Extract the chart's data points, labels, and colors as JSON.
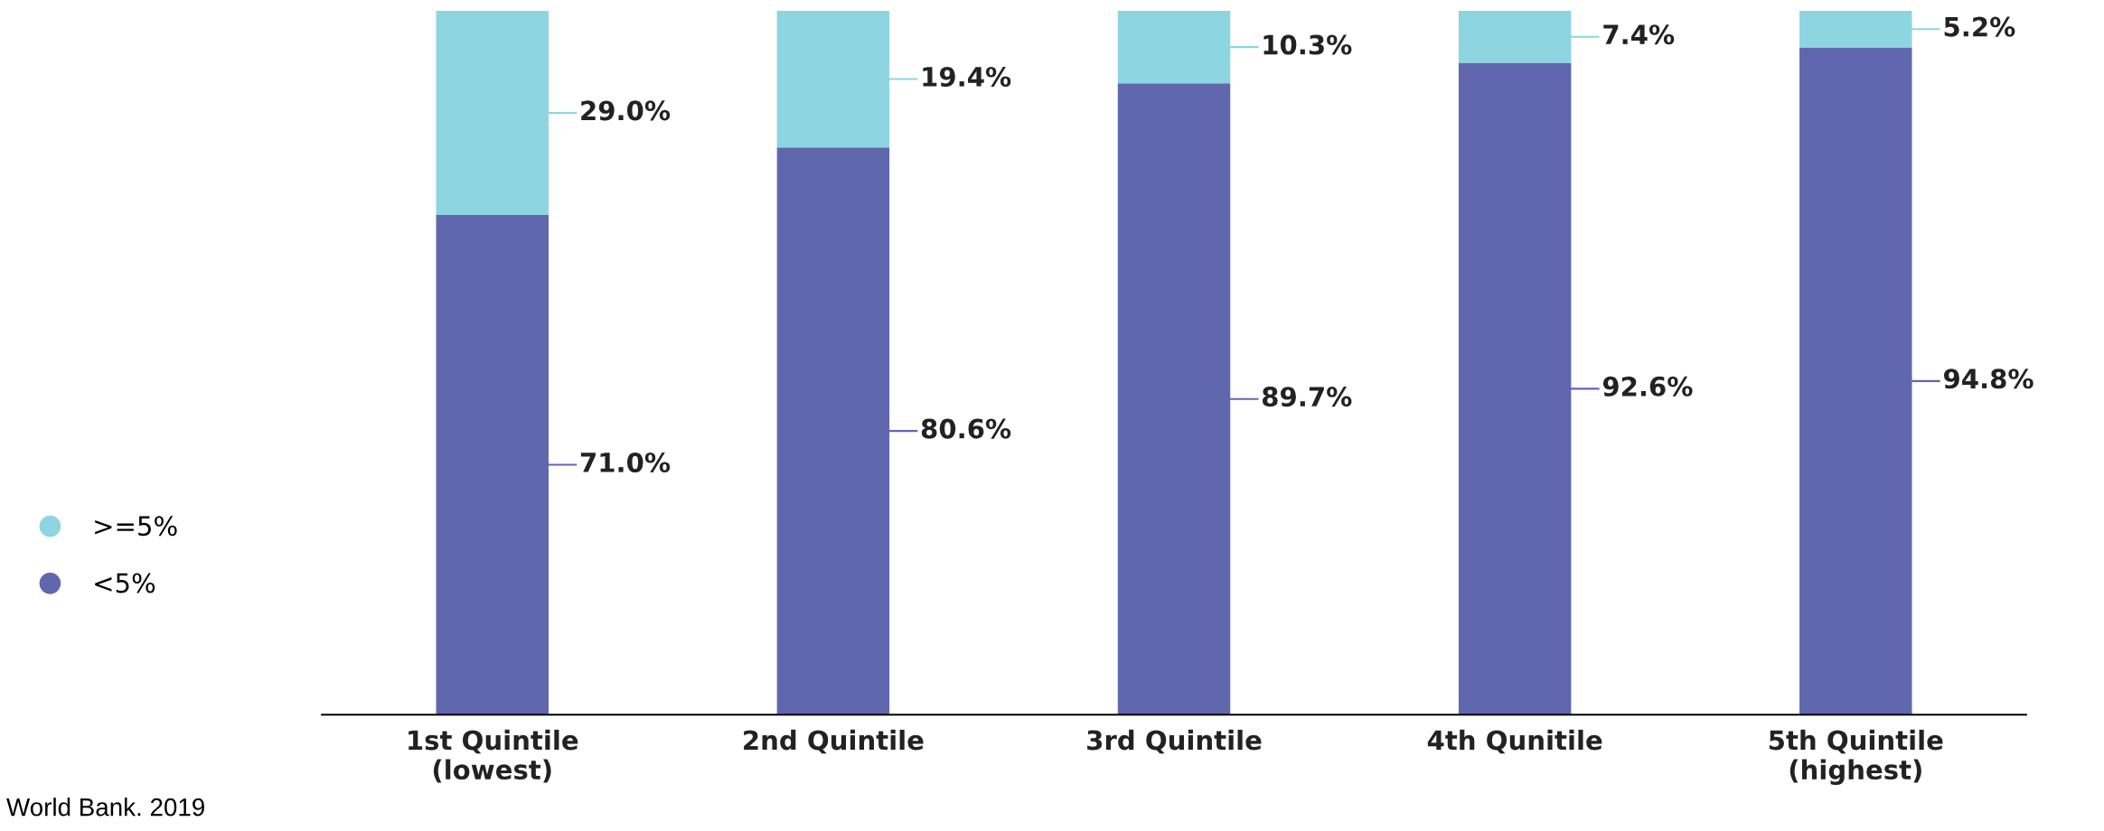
{
  "chart_data": {
    "type": "bar",
    "stacked": true,
    "legend": "left",
    "grid": false,
    "categories": [
      "1st Quintile\n(lowest)",
      "2nd Quintile",
      "3rd Quintile",
      "4th Qunitile",
      "5th Quintile\n(highest)"
    ],
    "series": [
      {
        "name": "<5%",
        "color": "#6067ae",
        "values": [
          71.0,
          80.6,
          89.7,
          92.6,
          94.8
        ],
        "value_labels": [
          "71.0%",
          "80.6%",
          "89.7%",
          "92.6%",
          "94.8%"
        ]
      },
      {
        "name": ">=5%",
        "color": "#8dd5e0",
        "values": [
          29.0,
          19.4,
          10.3,
          7.4,
          5.2
        ],
        "value_labels": [
          "29.0%",
          "19.4%",
          "10.3%",
          "7.4%",
          "5.2%"
        ]
      }
    ],
    "annotations": [
      "World Bank. 2019"
    ]
  }
}
